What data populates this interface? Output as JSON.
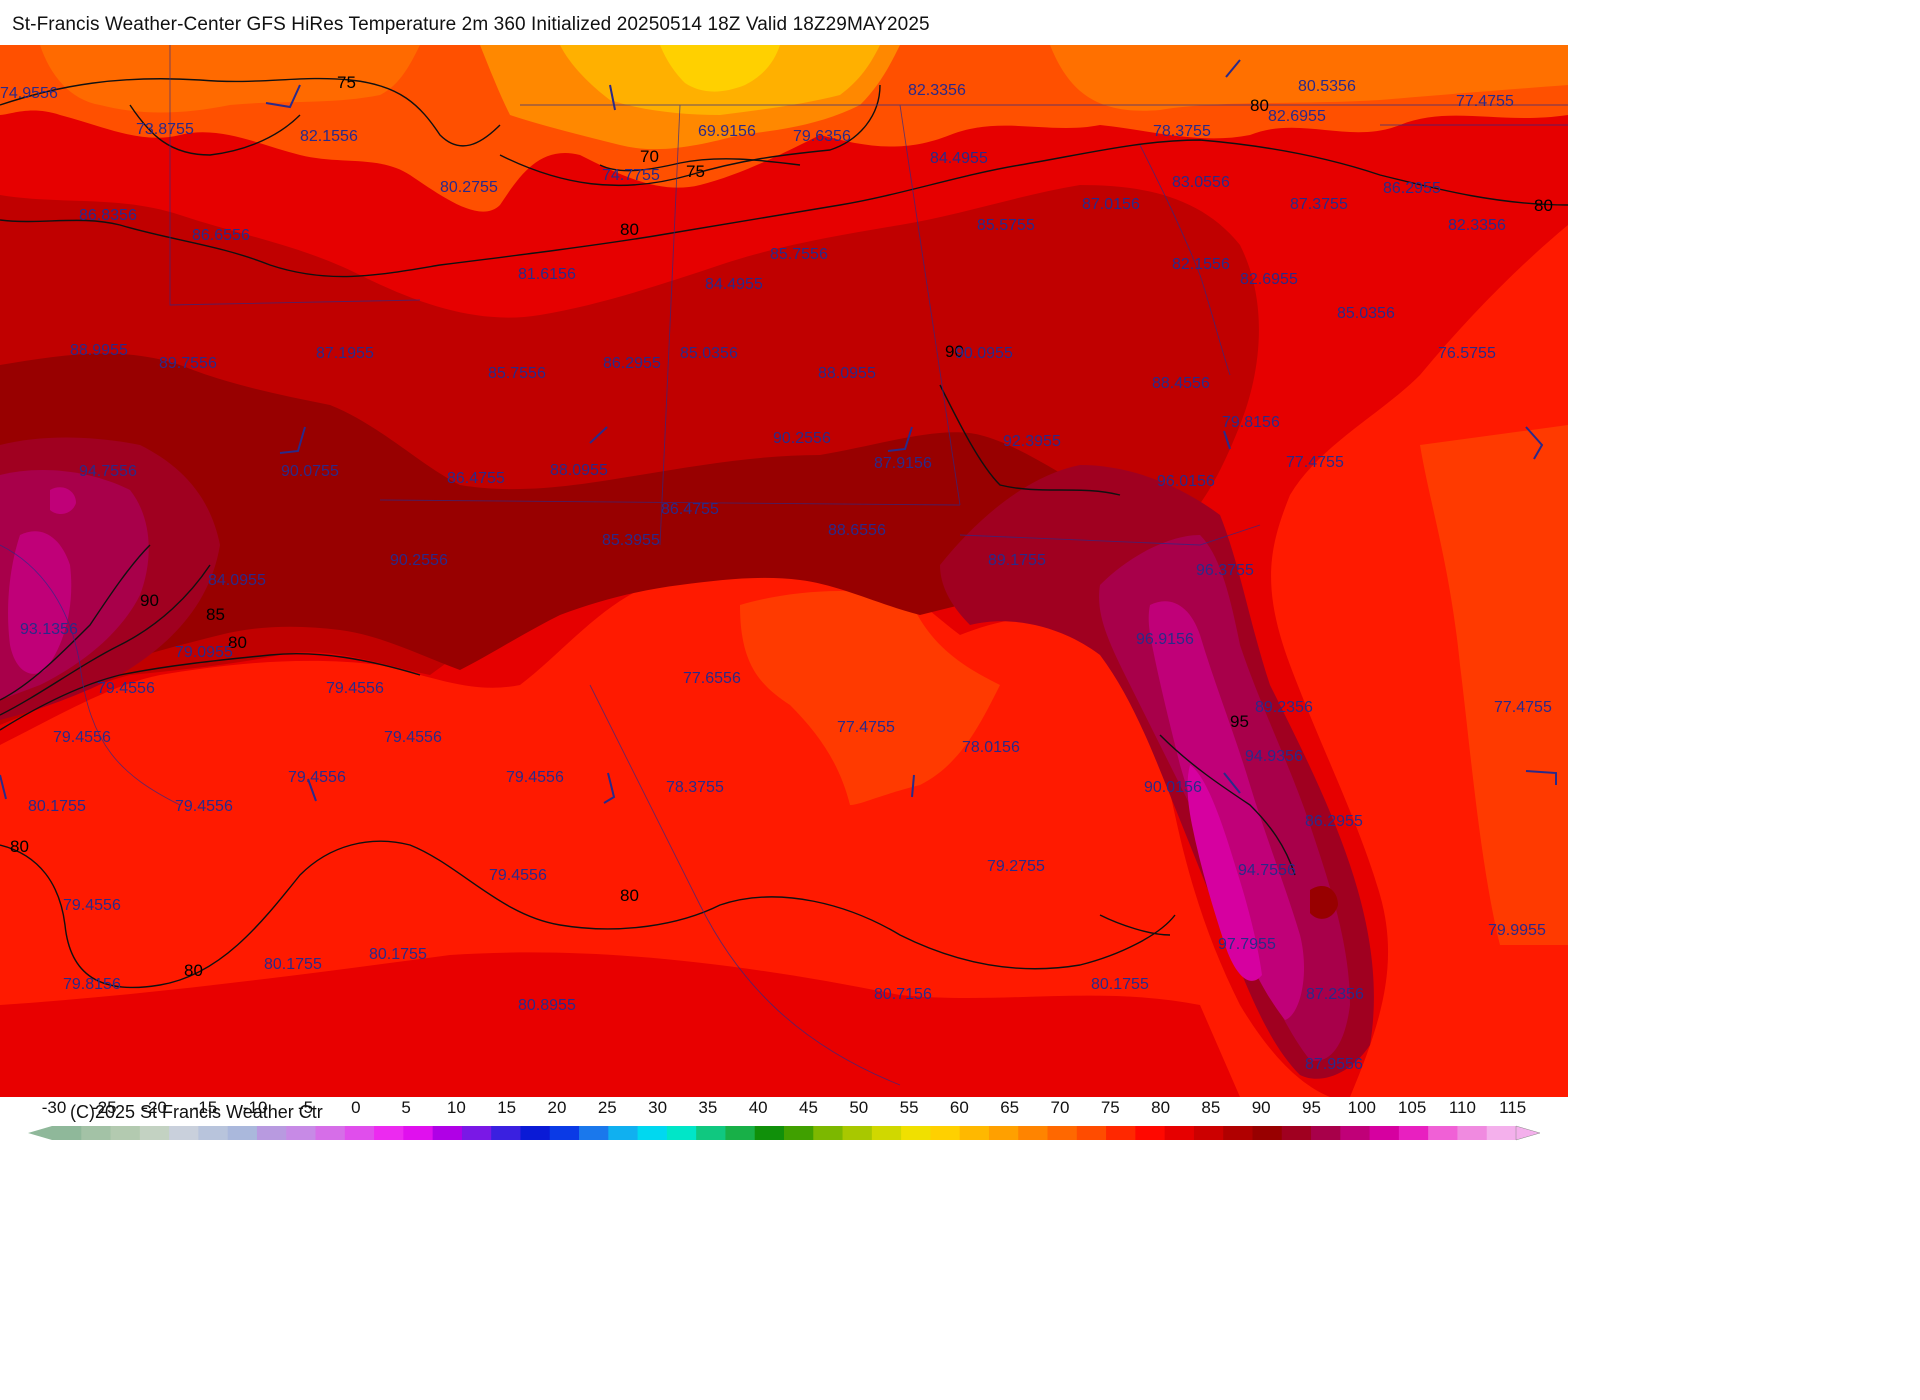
{
  "header": {
    "title": "St-Francis Weather-Center GFS HiRes Temperature 2m  360 Initialized 20250514 18Z Valid 18Z29MAY2025"
  },
  "footer": {
    "copyright": "(C)2025 St Francis Weather Ctr"
  },
  "colors": {
    "gulf_red": "#ff1a00",
    "land_red": "#e60000",
    "dark_red": "#c00000",
    "maroon": "#96001a",
    "purple_hot": "#a8006e",
    "magenta": "#cc00a0",
    "orange": "#ff5000",
    "orange_light": "#ff8800",
    "yellow_orange": "#ffb000",
    "value_text": "#2a2a8a"
  },
  "scale": {
    "labels": [
      "-30",
      "-25",
      "-20",
      "-15",
      "-10",
      "-5",
      "0",
      "5",
      "10",
      "15",
      "20",
      "25",
      "30",
      "35",
      "40",
      "45",
      "50",
      "55",
      "60",
      "65",
      "70",
      "75",
      "80",
      "85",
      "90",
      "95",
      "100",
      "105",
      "110",
      "115"
    ],
    "colors": [
      "#8fb89a",
      "#a3c2a6",
      "#b3cab0",
      "#c3d2c2",
      "#c9d0dc",
      "#b8c4dc",
      "#aab8dc",
      "#b89ae0",
      "#c78ae6",
      "#d66ee8",
      "#e04eec",
      "#ec2af0",
      "#e010ee",
      "#b000e6",
      "#7a18e6",
      "#3a20e0",
      "#0a1ad6",
      "#0a3ae6",
      "#1a78ec",
      "#10b0f0",
      "#00d8f0",
      "#00e6c8",
      "#10c880",
      "#18b048",
      "#10900a",
      "#40a000",
      "#7cb800",
      "#a8c800",
      "#d0d800",
      "#f0e000",
      "#ffd000",
      "#ffb800",
      "#ffa000",
      "#ff8400",
      "#ff6800",
      "#ff4c00",
      "#ff2800",
      "#ff0800",
      "#e60000",
      "#cc0000",
      "#b00000",
      "#980000",
      "#a00020",
      "#a8004a",
      "#c00078",
      "#d600a0",
      "#e820c0",
      "#f060d6",
      "#f08ae0",
      "#f4b0ec"
    ]
  },
  "contour_labels": [
    {
      "id": "c75-north",
      "text": "75"
    },
    {
      "id": "c70",
      "text": "70"
    },
    {
      "id": "c75-ms",
      "text": "75"
    },
    {
      "id": "c80-al",
      "text": "80"
    },
    {
      "id": "c80-ga",
      "text": "80"
    },
    {
      "id": "c80-east",
      "text": "80"
    },
    {
      "id": "c90-ga",
      "text": "90"
    },
    {
      "id": "c90-tx",
      "text": "90"
    },
    {
      "id": "c85-tx",
      "text": "85"
    },
    {
      "id": "c80-tx",
      "text": "80"
    },
    {
      "id": "c80-west",
      "text": "80"
    },
    {
      "id": "c95-fl",
      "text": "95"
    },
    {
      "id": "c80-gulf",
      "text": "80"
    },
    {
      "id": "c80-sw",
      "text": "80"
    }
  ],
  "station_values": [
    "74.9556",
    "73.8755",
    "82.1556",
    "69.9156",
    "79.6356",
    "82.3356",
    "80.5356",
    "77.4755",
    "78.3755",
    "82.6955",
    "80.2755",
    "74.7755",
    "84.4955",
    "83.0556",
    "86.2955",
    "86.8356",
    "86.6556",
    "87.0156",
    "87.3755",
    "82.3356",
    "85.5755",
    "85.7556",
    "81.6156",
    "84.4955",
    "82.1556",
    "82.6955",
    "85.0356",
    "88.9955",
    "89.7556",
    "87.1955",
    "86.2955",
    "85.0356",
    "88.0955",
    "90.0955",
    "85.7556",
    "88.4556",
    "76.5755",
    "79.8156",
    "90.2556",
    "92.3955",
    "94.7556",
    "90.0755",
    "88.0955",
    "87.9156",
    "86.4755",
    "96.0156",
    "77.4755",
    "86.4755",
    "88.6556",
    "85.3955",
    "90.2556",
    "89.1755",
    "96.3755",
    "84.0955",
    "93.1356",
    "79.0955",
    "96.9156",
    "79.4556",
    "79.4556",
    "77.6556",
    "79.4556",
    "79.4556",
    "77.4755",
    "78.0156",
    "89.2356",
    "77.4755",
    "79.4556",
    "79.4556",
    "78.3755",
    "94.9356",
    "90.0156",
    "80.1755",
    "79.4556",
    "86.2955",
    "79.4556",
    "79.2755",
    "94.7556",
    "79.4556",
    "97.7955",
    "79.9955",
    "80.1755",
    "80.1755",
    "80.1755",
    "80.7156",
    "79.8156",
    "80.8955",
    "87.2356",
    "87.9556"
  ]
}
